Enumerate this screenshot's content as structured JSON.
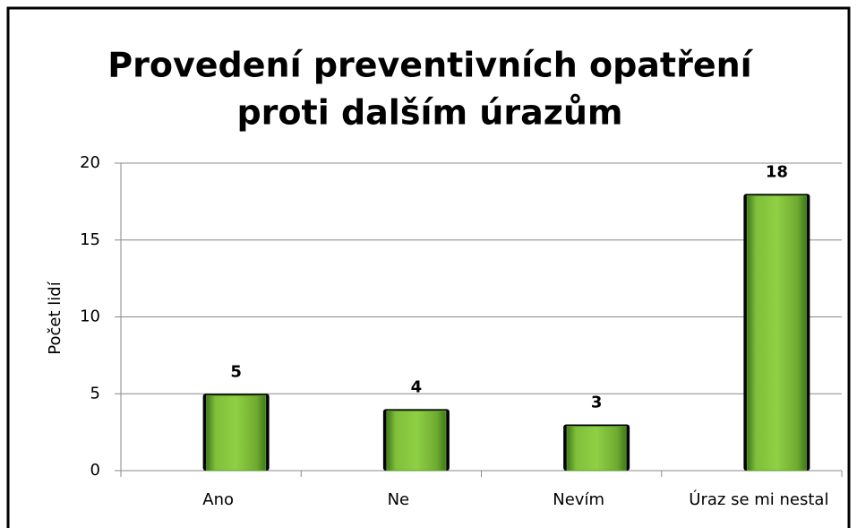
{
  "chart_data": {
    "type": "bar",
    "title": [
      "Provedení preventivních opatření",
      "proti dalším úrazům"
    ],
    "ylabel": "Počet lidí",
    "categories": [
      "Ano",
      "Ne",
      "Nevím",
      "Úraz se mi nestal"
    ],
    "values": [
      5,
      4,
      3,
      18
    ],
    "color": "#7fbf3a",
    "ylim": [
      0,
      20
    ],
    "yticks": [
      0,
      5,
      10,
      15,
      20
    ],
    "grid": true
  }
}
